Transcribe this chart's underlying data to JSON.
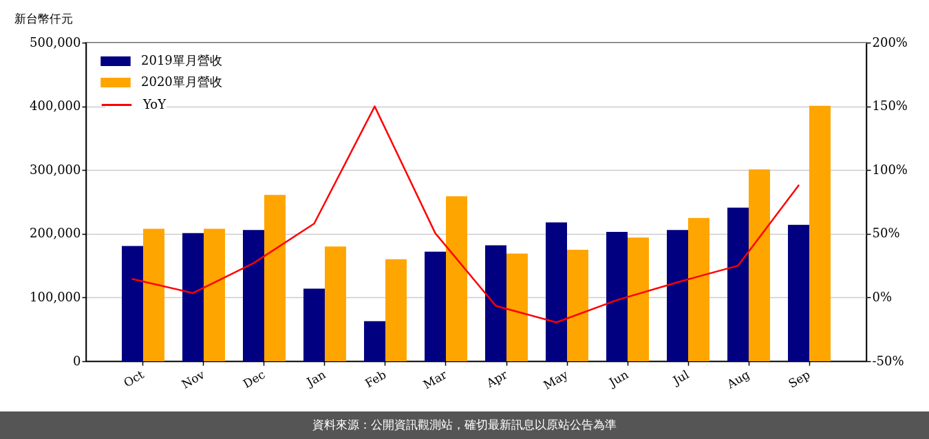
{
  "chart_data": {
    "type": "bar",
    "ylabel": "新台幣仟元",
    "categories": [
      "Oct",
      "Nov",
      "Dec",
      "Jan",
      "Feb",
      "Mar",
      "Apr",
      "May",
      "Jun",
      "Jul",
      "Aug",
      "Sep"
    ],
    "series": [
      {
        "name": "2019單月營收",
        "color": "#000080",
        "values": [
          181000,
          201000,
          206000,
          114000,
          63000,
          172000,
          182000,
          218000,
          203000,
          206000,
          241000,
          214000
        ]
      },
      {
        "name": "2020單月營收",
        "color": "#ffa500",
        "values": [
          208000,
          208000,
          261000,
          180000,
          160000,
          259000,
          169000,
          175000,
          194000,
          225000,
          301000,
          401000
        ]
      },
      {
        "name": "YoY",
        "type": "line",
        "axis": "y2",
        "color": "#ff0000",
        "values": [
          14.5,
          3.5,
          27,
          58,
          150,
          50.5,
          -6.5,
          -19.5,
          -2,
          12,
          25,
          88
        ]
      }
    ],
    "ylim": [
      0,
      500000
    ],
    "yticks": [
      0,
      {
        "value": 100000,
        "label": "100,000"
      },
      {
        "value": 200000,
        "label": "200,000"
      },
      {
        "value": 300000,
        "label": "300,000"
      },
      {
        "value": 400000,
        "label": "400,000"
      },
      {
        "value": 500000,
        "label": "500,000"
      }
    ],
    "y2lim": [
      -50,
      200
    ],
    "y2ticks": [
      {
        "value": -50,
        "label": "-50%"
      },
      {
        "value": 0,
        "label": "0%"
      },
      {
        "value": 50,
        "label": "50%"
      },
      {
        "value": 100,
        "label": "100%"
      },
      {
        "value": 150,
        "label": "150%"
      },
      {
        "value": 200,
        "label": "200%"
      }
    ],
    "grid": "y",
    "legend": "top left",
    "annotations": [
      "資料來源：公開資訊觀測站，確切最新訊息以原站公告為準"
    ]
  }
}
